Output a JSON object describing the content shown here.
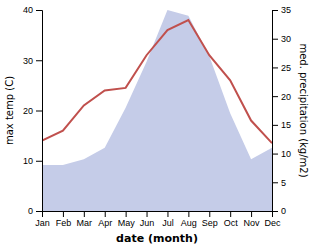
{
  "chart_data": {
    "type": "line",
    "categories": [
      "Jan",
      "Feb",
      "Mar",
      "Apr",
      "May",
      "Jun",
      "Jul",
      "Aug",
      "Sep",
      "Oct",
      "Nov",
      "Dec"
    ],
    "series": [
      {
        "type": "area",
        "axis": "y2",
        "color": "#c5cce8",
        "values": [
          8,
          8,
          9,
          11,
          18,
          26,
          35,
          34,
          27,
          17,
          9,
          11
        ]
      },
      {
        "type": "line",
        "color": "#c0504d",
        "values": [
          14,
          16,
          21,
          24,
          24.5,
          31,
          36,
          38,
          31,
          26,
          18,
          13.5
        ]
      }
    ],
    "xlabel": "date (month)",
    "ylabel": "max temp (C)",
    "y2label": "med. precipitation (kg/m2)",
    "ylim": [
      0,
      40
    ],
    "yticks": [
      0,
      10,
      20,
      30,
      40
    ],
    "y2lim": [
      0,
      35
    ],
    "y2ticks": [
      0,
      5,
      10,
      15,
      20,
      25,
      30,
      35
    ],
    "grid": false
  }
}
